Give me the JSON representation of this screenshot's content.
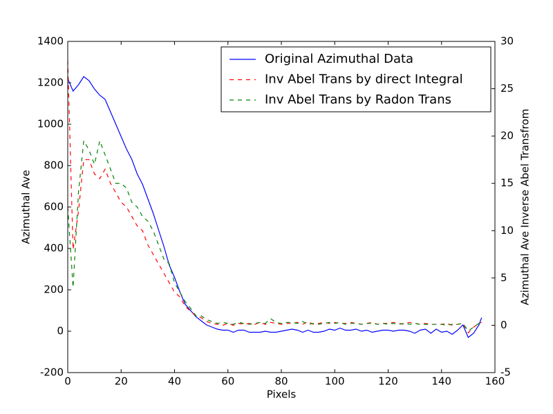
{
  "chart_data": {
    "type": "line",
    "xlabel": "Pixels",
    "ylabel": "Azimuthal Ave",
    "y2label": "Azimuthal Ave Inverse Abel Transfrom",
    "x": [
      0,
      2,
      4,
      6,
      8,
      10,
      12,
      14,
      16,
      18,
      20,
      22,
      24,
      26,
      28,
      30,
      32,
      34,
      36,
      38,
      40,
      42,
      44,
      46,
      48,
      50,
      52,
      54,
      56,
      58,
      60,
      62,
      64,
      66,
      68,
      70,
      72,
      74,
      76,
      78,
      80,
      82,
      84,
      86,
      88,
      90,
      92,
      94,
      96,
      98,
      100,
      102,
      104,
      106,
      108,
      110,
      112,
      114,
      116,
      118,
      120,
      122,
      124,
      126,
      128,
      130,
      132,
      134,
      136,
      138,
      140,
      142,
      144,
      146,
      148,
      150,
      152,
      154,
      155
    ],
    "series": [
      {
        "name": "Original Azimuthal Data",
        "color": "#0000ff",
        "linestyle": "solid",
        "axis": "y",
        "values": [
          1220,
          1160,
          1190,
          1230,
          1210,
          1170,
          1140,
          1120,
          1060,
          1000,
          940,
          880,
          830,
          760,
          710,
          640,
          570,
          490,
          410,
          320,
          260,
          190,
          130,
          100,
          70,
          50,
          30,
          20,
          10,
          5,
          5,
          -5,
          5,
          5,
          -5,
          -5,
          -5,
          0,
          -5,
          -5,
          0,
          5,
          10,
          5,
          -5,
          5,
          -5,
          -5,
          0,
          10,
          5,
          15,
          5,
          5,
          10,
          0,
          5,
          -5,
          0,
          5,
          5,
          0,
          5,
          5,
          0,
          -10,
          5,
          10,
          -10,
          10,
          -5,
          0,
          -15,
          5,
          30,
          -30,
          -10,
          30,
          65
        ]
      },
      {
        "name": "Inv Abel Trans by direct Integral",
        "color": "#ff0000",
        "linestyle": "dashed",
        "axis": "y2",
        "values": [
          28,
          8,
          12,
          17.5,
          17.5,
          16,
          15.5,
          16.5,
          15,
          14,
          13,
          12.5,
          11.5,
          10.5,
          10,
          8.5,
          7.5,
          6.5,
          5.5,
          4.5,
          3.5,
          3,
          2,
          1.5,
          1,
          0.8,
          0.4,
          0.2,
          0.1,
          0,
          0.2,
          0,
          0.2,
          0.1,
          0.2,
          0.1,
          0.3,
          0.1,
          0.3,
          0.2,
          0.1,
          0.2,
          0.2,
          0.3,
          0.1,
          0.4,
          0.1,
          0.2,
          0.3,
          0.2,
          0.3,
          0.2,
          0.2,
          0.3,
          0.2,
          0.1,
          0.2,
          0.3,
          0.1,
          0.2,
          0.2,
          0.3,
          0.2,
          0.1,
          0.3,
          0.2,
          0.1,
          0.2,
          0.1,
          0.1,
          0.1,
          0.2,
          0,
          0.1,
          0.2,
          -0.8,
          -0.2,
          0.2,
          0.3
        ]
      },
      {
        "name": "Inv Abel Trans by Radon Trans",
        "color": "#008000",
        "linestyle": "dashed",
        "axis": "y2",
        "values": [
          12.5,
          4,
          14,
          19.5,
          18.5,
          17,
          19.5,
          18,
          16.5,
          15,
          15,
          14.5,
          13,
          12.5,
          11.5,
          11,
          10,
          8.5,
          7,
          6.5,
          4.5,
          3.5,
          2.5,
          1.8,
          1,
          1,
          0.6,
          0.4,
          0.2,
          0.3,
          0.2,
          0.1,
          0.3,
          0.2,
          0.1,
          0.2,
          0.3,
          0.2,
          0.7,
          0.3,
          0.2,
          0.3,
          0.3,
          0.2,
          0.4,
          0.1,
          0.2,
          0.1,
          0.2,
          0.3,
          0.2,
          0.3,
          0.1,
          0.2,
          0.2,
          0.1,
          0.2,
          0.2,
          0.1,
          0.2,
          0.1,
          0.2,
          0.1,
          0.2,
          0.1,
          0.2,
          0.1,
          0.1,
          0.1,
          0.1,
          0.1,
          0,
          0.1,
          0.1,
          0.2,
          -0.6,
          -0.2,
          0.2,
          0.3
        ]
      }
    ],
    "xlim": [
      0,
      160
    ],
    "xticks": [
      0,
      20,
      40,
      60,
      80,
      100,
      120,
      140,
      160
    ],
    "ylim": [
      -200,
      1400
    ],
    "yticks": [
      -200,
      0,
      200,
      400,
      600,
      800,
      1000,
      1200,
      1400
    ],
    "y2lim": [
      -5,
      30
    ],
    "y2ticks": [
      -5,
      0,
      5,
      10,
      15,
      20,
      25,
      30
    ],
    "grid": false,
    "legend": "upper right"
  }
}
